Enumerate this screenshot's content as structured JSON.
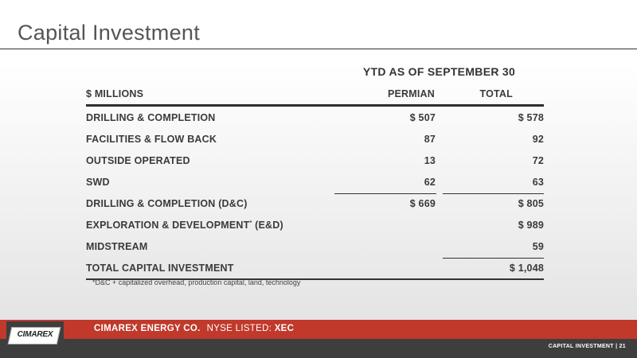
{
  "slide": {
    "title": "Capital Investment",
    "ytd_header": "YTD AS OF SEPTEMBER 30"
  },
  "table": {
    "headers": {
      "label": "$ MILLIONS",
      "permian": "PERMIAN",
      "total": "TOTAL"
    },
    "rows": [
      {
        "label": "DRILLING & COMPLETION",
        "permian": "$ 507",
        "total": "$ 578"
      },
      {
        "label": "FACILITIES & FLOW BACK",
        "permian": "87",
        "total": "92"
      },
      {
        "label": "OUTSIDE OPERATED",
        "permian": "13",
        "total": "72"
      },
      {
        "label": "SWD",
        "permian": "62",
        "total": "63"
      },
      {
        "label": "DRILLING & COMPLETION (D&C)",
        "permian": "$ 669",
        "total": "$ 805"
      },
      {
        "label_pre": "EXPLORATION & DEVELOPMENT",
        "label_sup": "*",
        "label_post": " (E&D)",
        "permian": "",
        "total": "$ 989"
      },
      {
        "label": "MIDSTREAM",
        "permian": "",
        "total": "59"
      },
      {
        "label": "TOTAL CAPITAL INVESTMENT",
        "permian": "",
        "total": "$ 1,048"
      }
    ],
    "footnote": "*D&C + capitalized overhead, production capital, land, technology"
  },
  "footer": {
    "logo_text": "CIMAREX",
    "company": "CIMAREX ENERGY CO.",
    "listed": "NYSE LISTED: ",
    "ticker": "XEC",
    "page_label": "CAPITAL INVESTMENT | 21"
  }
}
